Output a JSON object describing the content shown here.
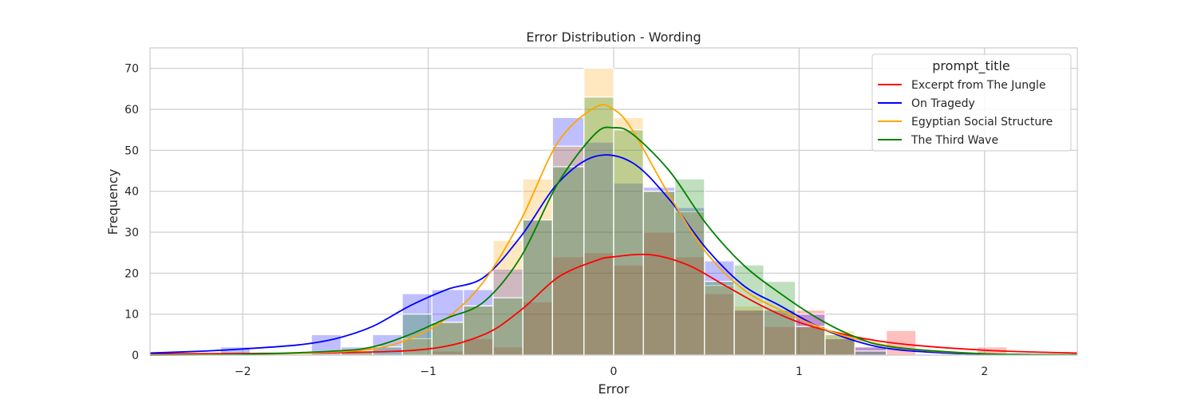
{
  "chart_data": {
    "type": "histogram",
    "title": "Error Distribution - Wording",
    "xlabel": "Error",
    "ylabel": "Frequency",
    "xlim": [
      -2.5,
      2.5
    ],
    "ylim": [
      0,
      75
    ],
    "xticks": [
      -2,
      -1,
      0,
      1,
      2
    ],
    "xtick_labels": [
      "−2",
      "−1",
      "0",
      "1",
      "2"
    ],
    "yticks": [
      0,
      10,
      20,
      30,
      40,
      50,
      60,
      70
    ],
    "ytick_labels": [
      "0",
      "10",
      "20",
      "30",
      "40",
      "50",
      "60",
      "70"
    ],
    "grid": true,
    "legend": {
      "title": "prompt_title",
      "position": "top-right"
    },
    "bins": [
      -2.12,
      -1.96,
      -1.79,
      -1.63,
      -1.47,
      -1.3,
      -1.14,
      -0.98,
      -0.81,
      -0.65,
      -0.49,
      -0.33,
      -0.16,
      0.0,
      0.16,
      0.33,
      0.49,
      0.65,
      0.81,
      0.98,
      1.14,
      1.3,
      1.47,
      1.63,
      1.79,
      1.96,
      2.12
    ],
    "series": [
      {
        "name": "Excerpt from The Jungle",
        "color": "#ff0000",
        "counts": [
          0,
          0,
          0,
          0,
          0,
          0,
          0,
          1,
          4,
          2,
          13,
          24,
          25,
          22,
          30,
          24,
          15,
          11,
          7,
          11,
          4,
          2,
          6,
          0,
          0,
          2
        ],
        "kde_x": [
          -2.5,
          -2.0,
          -1.5,
          -1.0,
          -0.7,
          -0.5,
          -0.3,
          -0.1,
          0.0,
          0.2,
          0.4,
          0.6,
          0.8,
          1.0,
          1.2,
          1.5,
          2.0,
          2.5
        ],
        "kde_y": [
          0.3,
          0.4,
          0.6,
          1.5,
          5,
          11,
          19,
          23,
          24,
          24.5,
          22,
          17,
          12,
          8,
          5.5,
          3,
          1.2,
          0.5
        ]
      },
      {
        "name": "On Tragedy",
        "color": "#0000ff",
        "counts": [
          2,
          0,
          0,
          5,
          2,
          5,
          15,
          16,
          16,
          21,
          33,
          58,
          52,
          42,
          41,
          36,
          23,
          11,
          11,
          10,
          4,
          2,
          0,
          0,
          0,
          0
        ],
        "kde_x": [
          -2.5,
          -2.2,
          -2.0,
          -1.7,
          -1.5,
          -1.3,
          -1.1,
          -0.9,
          -0.7,
          -0.5,
          -0.3,
          -0.1,
          0.1,
          0.3,
          0.5,
          0.7,
          0.9,
          1.1,
          1.3,
          1.5,
          1.8,
          2.1,
          2.5
        ],
        "kde_y": [
          0.5,
          1,
          1.5,
          2.5,
          4,
          7,
          12,
          16,
          19,
          29,
          42,
          48.5,
          47,
          38,
          26,
          17,
          12,
          7,
          3.5,
          1.5,
          0.5,
          0.2,
          0.1
        ]
      },
      {
        "name": "Egyptian Social Structure",
        "color": "#ffa500",
        "counts": [
          0,
          0,
          0,
          0,
          1,
          0,
          4,
          8,
          12,
          28,
          43,
          51,
          70,
          58,
          40,
          35,
          17,
          12,
          11,
          7,
          6,
          0,
          0,
          0,
          0,
          0
        ],
        "kde_x": [
          -2.5,
          -2.0,
          -1.6,
          -1.3,
          -1.1,
          -0.9,
          -0.7,
          -0.5,
          -0.3,
          -0.1,
          0.0,
          0.1,
          0.3,
          0.5,
          0.7,
          0.9,
          1.1,
          1.3,
          1.6,
          2.0,
          2.5
        ],
        "kde_y": [
          0,
          0.2,
          0.6,
          1.5,
          4,
          9,
          18,
          33,
          52,
          60.5,
          60,
          55,
          39,
          25,
          16,
          11,
          7,
          4,
          1.5,
          0.3,
          0.1
        ]
      },
      {
        "name": "The Third Wave",
        "color": "#008000",
        "counts": [
          0,
          0,
          0,
          0,
          1,
          2,
          10,
          8,
          12,
          14,
          33,
          46,
          63,
          55,
          40,
          43,
          18,
          22,
          18,
          7,
          5,
          1,
          0,
          0,
          0,
          0
        ],
        "kde_x": [
          -2.5,
          -2.0,
          -1.5,
          -1.3,
          -1.1,
          -0.9,
          -0.7,
          -0.5,
          -0.3,
          -0.1,
          0.0,
          0.1,
          0.3,
          0.5,
          0.7,
          0.9,
          1.1,
          1.3,
          1.5,
          2.0,
          2.5
        ],
        "kde_y": [
          0,
          0.2,
          1,
          2,
          5,
          9,
          13,
          24,
          42,
          54,
          55.5,
          54,
          45,
          32,
          22,
          15,
          9,
          4.5,
          2,
          0.3,
          0.1
        ]
      }
    ]
  }
}
